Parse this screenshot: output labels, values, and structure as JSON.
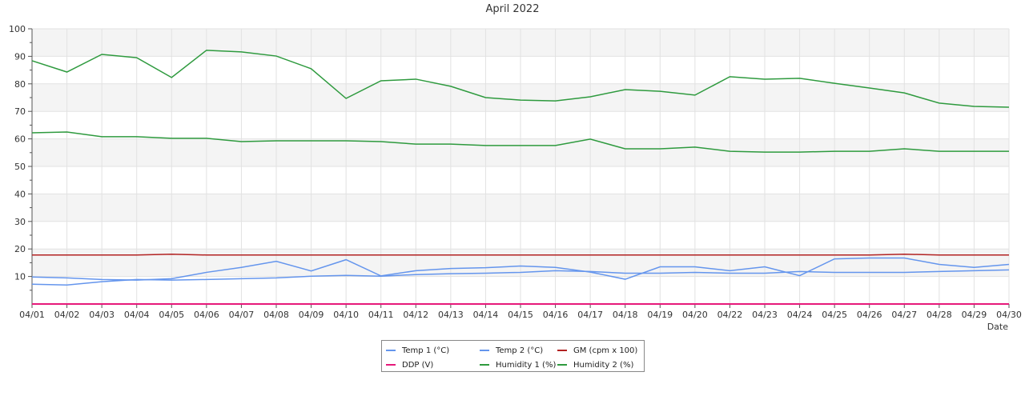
{
  "chart_data": {
    "type": "line",
    "title": "April 2022",
    "xlabel": "Date",
    "ylabel": "",
    "ylim": [
      0,
      100
    ],
    "yticks": [
      10,
      20,
      30,
      40,
      50,
      60,
      70,
      80,
      90,
      100
    ],
    "grid": true,
    "legend_position": "bottom-center",
    "categories": [
      "04/01",
      "04/02",
      "04/03",
      "04/04",
      "04/05",
      "04/06",
      "04/07",
      "04/08",
      "04/09",
      "04/10",
      "04/11",
      "04/12",
      "04/13",
      "04/14",
      "04/15",
      "04/16",
      "04/17",
      "04/18",
      "04/19",
      "04/20",
      "04/22",
      "04/23",
      "04/24",
      "04/25",
      "04/26",
      "04/27",
      "04/28",
      "04/29",
      "04/30"
    ],
    "series": [
      {
        "name": "Temp 1 (°C)",
        "color": "#6495ed",
        "values": [
          9.8,
          9.5,
          8.9,
          8.7,
          9.2,
          11.5,
          13.3,
          15.5,
          12.0,
          16.1,
          10.2,
          12.1,
          12.9,
          13.2,
          13.8,
          13.3,
          11.6,
          9.0,
          13.5,
          13.5,
          12.1,
          13.5,
          10.3,
          16.4,
          16.7,
          16.7,
          14.4,
          13.3,
          14.4
        ]
      },
      {
        "name": "Temp 2 (°C)",
        "color": "#6495ed",
        "values": [
          7.2,
          6.9,
          8.1,
          8.9,
          8.7,
          8.9,
          9.2,
          9.5,
          10.1,
          10.4,
          10.1,
          10.7,
          11.0,
          11.2,
          11.5,
          12.1,
          11.8,
          11.2,
          11.2,
          11.5,
          11.2,
          11.2,
          11.8,
          11.5,
          11.5,
          11.5,
          11.8,
          12.1,
          12.4
        ]
      },
      {
        "name": "GM (cpm x 100)",
        "color": "#b22222",
        "values": [
          17.8,
          17.8,
          17.8,
          17.8,
          18.1,
          17.8,
          17.8,
          17.8,
          17.8,
          17.8,
          17.8,
          17.8,
          17.8,
          17.8,
          17.8,
          17.8,
          17.8,
          17.8,
          17.8,
          17.8,
          17.8,
          17.8,
          17.8,
          17.8,
          17.8,
          18.1,
          17.8,
          17.8,
          17.8
        ]
      },
      {
        "name": "DDP (V)",
        "color": "#e6197a",
        "values": [
          0,
          0,
          0,
          0,
          0,
          0,
          0,
          0,
          0,
          0,
          0,
          0,
          0,
          0,
          0,
          0,
          0,
          0,
          0,
          0,
          0,
          0,
          0,
          0,
          0,
          0,
          0,
          0,
          0
        ]
      },
      {
        "name": "Humidity 1 (%)",
        "color": "#2e9a3e",
        "values": [
          88.4,
          84.3,
          90.7,
          89.5,
          82.3,
          92.2,
          91.6,
          90.1,
          85.5,
          74.7,
          81.1,
          81.7,
          79.1,
          75.0,
          74.1,
          73.8,
          75.3,
          77.9,
          77.3,
          75.9,
          82.6,
          81.7,
          82.0,
          80.2,
          78.5,
          76.7,
          73.0,
          71.8,
          71.5
        ]
      },
      {
        "name": "Humidity 2 (%)",
        "color": "#2e9a3e",
        "values": [
          62.2,
          62.5,
          60.8,
          60.8,
          60.2,
          60.2,
          59.0,
          59.3,
          59.3,
          59.3,
          59.0,
          58.1,
          58.1,
          57.6,
          57.6,
          57.6,
          59.9,
          56.4,
          56.4,
          57.0,
          55.5,
          55.2,
          55.2,
          55.5,
          55.5,
          56.4,
          55.5,
          55.5,
          55.5
        ]
      }
    ]
  }
}
